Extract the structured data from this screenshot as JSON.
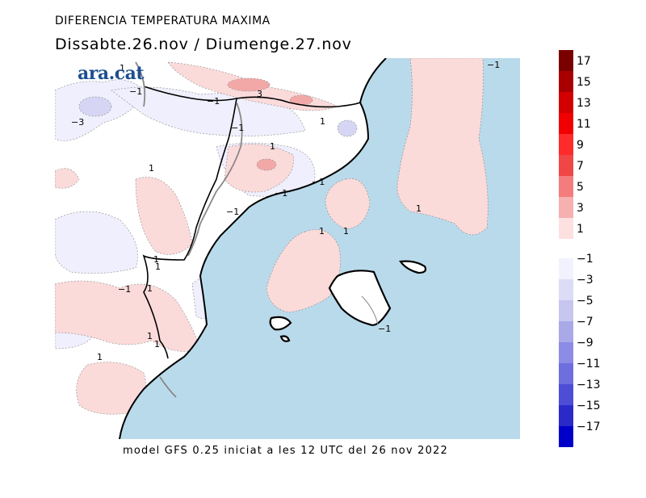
{
  "header": {
    "title": "DIFERENCIA TEMPERATURA MAXIMA",
    "subtitle": "Dissabte.26.nov  /  Diumenge.27.nov"
  },
  "logo": {
    "text": "ara.cat"
  },
  "footer": {
    "text": "model GFS 0.25 iniciat a les 12 UTC del 26 nov 2022"
  },
  "legend": {
    "positive": [
      {
        "label": "17",
        "color": "#7a0000"
      },
      {
        "label": "15",
        "color": "#a80000"
      },
      {
        "label": "13",
        "color": "#d30000"
      },
      {
        "label": "11",
        "color": "#f00000"
      },
      {
        "label": "9",
        "color": "#ff2a2a"
      },
      {
        "label": "7",
        "color": "#f04646"
      },
      {
        "label": "5",
        "color": "#f47c7c"
      },
      {
        "label": "3",
        "color": "#f7b0b0"
      },
      {
        "label": "1",
        "color": "#fde0e0"
      }
    ],
    "negative": [
      {
        "label": "−1",
        "color": "#f2f2ff"
      },
      {
        "label": "−3",
        "color": "#dcdcf6"
      },
      {
        "label": "−5",
        "color": "#c6c6ef"
      },
      {
        "label": "−7",
        "color": "#a9a9e8"
      },
      {
        "label": "−9",
        "color": "#8c8ce6"
      },
      {
        "label": "−11",
        "color": "#6e6edf"
      },
      {
        "label": "−13",
        "color": "#4d4dd6"
      },
      {
        "label": "−15",
        "color": "#2a2ac8"
      },
      {
        "label": "−17",
        "color": "#0000c8"
      }
    ]
  },
  "map": {
    "sea_color": "#b9daea",
    "contour_labels": [
      "1",
      "−1",
      "3",
      "−1",
      "−1",
      "−3",
      "1",
      "−1",
      "1",
      "1",
      "−1",
      "−1",
      "−1",
      "1",
      "1",
      "1",
      "1",
      "1",
      "−1",
      "1",
      "1",
      "1",
      "−1",
      "1"
    ]
  }
}
